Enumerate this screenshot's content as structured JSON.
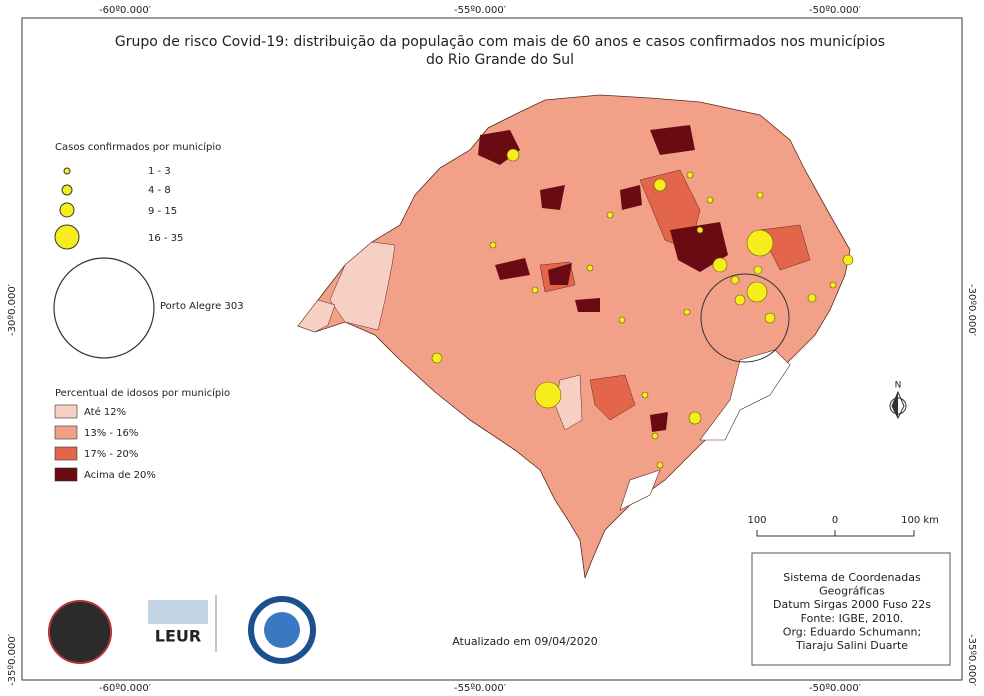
{
  "title": [
    "Grupo de risco Covid-19: distribuição da população com mais de 60 anos e casos confirmados nos municípios",
    "do Rio Grande do Sul"
  ],
  "coordinates": {
    "top": [
      "-60º0.000′",
      "-55º0.000′",
      "-50º0.000′"
    ],
    "bottom": [
      "-60º0.000′",
      "-55º0.000′",
      "-50º0.000′"
    ],
    "left": [
      "-30º0.000′",
      "-35º0.000′"
    ],
    "right": [
      "-30º0.000′",
      "-35º0.000′"
    ]
  },
  "legend_cases": {
    "title": "Casos confirmados por município",
    "items": [
      "1 - 3",
      "4 - 8",
      "9 - 15",
      "16 - 35"
    ],
    "special": "Porto Alegre 303"
  },
  "legend_elderly": {
    "title": "Percentual de idosos por município",
    "items": [
      {
        "label": "Até 12%",
        "color": "#f6d0c3"
      },
      {
        "label": "13% - 16%",
        "color": "#f2a088"
      },
      {
        "label": "17% - 20%",
        "color": "#e4664a"
      },
      {
        "label": "Acima de 20%",
        "color": "#6a0a12"
      }
    ]
  },
  "scale": [
    "100",
    "0",
    "100 km"
  ],
  "north": "N",
  "info": [
    "Sistema de Coordenadas",
    "Geográficas",
    "Datum Sirgas 2000 Fuso 22s",
    "Fonte: IGBE, 2010.",
    "Org: Eduardo Schumann;",
    "Tiaraju Salini Duarte"
  ],
  "updated": "Atualizado em 09/04/2020",
  "logos": {
    "leur": "LEUR"
  }
}
